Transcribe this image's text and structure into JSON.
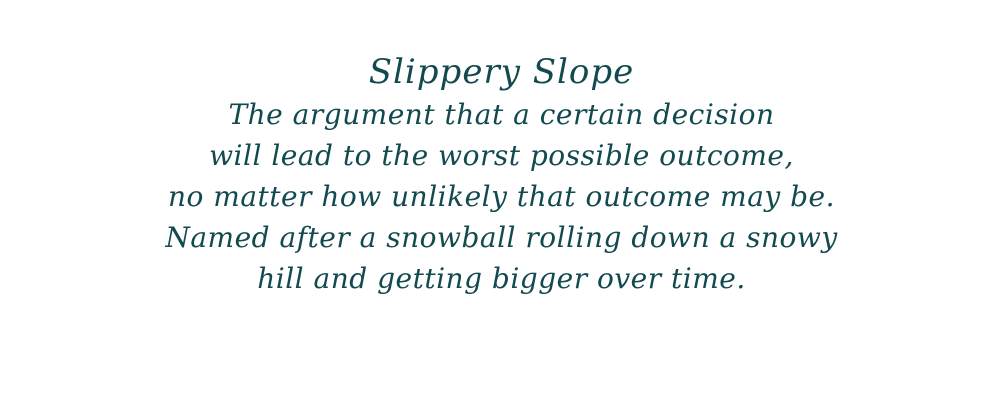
{
  "title": "Slippery Slope",
  "lines": [
    "The argument that a certain decision",
    "will lead to the worst possible outcome,",
    "no matter how unlikely that outcome may be.",
    "Named after a snowball rolling down a snowy",
    "hill and getting bigger over time."
  ],
  "colors": {
    "text": "#124a4f",
    "background": "#ffffff"
  }
}
